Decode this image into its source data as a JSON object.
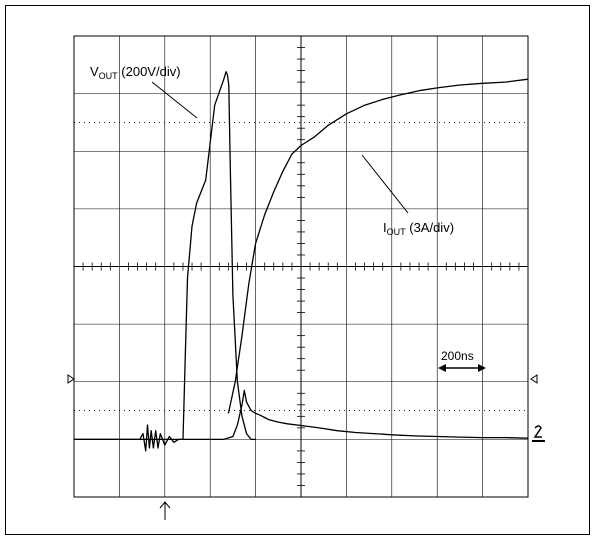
{
  "chart_data": {
    "type": "line",
    "title": "",
    "xlabel": "",
    "ylabel": "",
    "grid": true,
    "divisions": {
      "x": 10,
      "y": 8
    },
    "xlim": [
      0,
      10
    ],
    "ylim": [
      -4,
      4
    ],
    "time_scale": {
      "label": "200ns"
    },
    "series": [
      {
        "name_main": "V",
        "name_sub": "OUT",
        "name_rest": " (200V/div)",
        "color": "#000000",
        "x": [
          0,
          0.5,
          1.0,
          1.3,
          1.45,
          1.52,
          1.58,
          1.62,
          1.66,
          1.7,
          1.75,
          1.8,
          1.85,
          1.9,
          2.0,
          2.1,
          2.2,
          2.3,
          2.4,
          2.45,
          2.5,
          2.6,
          2.7,
          2.9,
          3.1,
          3.3,
          3.35,
          3.38,
          3.41,
          3.44,
          3.5,
          3.6,
          3.7,
          3.8,
          3.9,
          4.0
        ],
        "y": [
          -3.0,
          -3.0,
          -3.0,
          -3.0,
          -3.0,
          -2.9,
          -3.2,
          -2.75,
          -3.15,
          -2.85,
          -3.15,
          -2.85,
          -3.15,
          -2.9,
          -3.1,
          -2.95,
          -3.05,
          -3.0,
          -3.0,
          -1.6,
          -0.2,
          0.7,
          1.1,
          1.5,
          2.8,
          3.25,
          3.38,
          3.32,
          3.15,
          1.8,
          -0.5,
          -2.0,
          -2.6,
          -2.9,
          -3.0,
          -3.0
        ]
      },
      {
        "name_main": "I",
        "name_sub": "OUT",
        "name_rest": " (3A/div)",
        "color": "#000000",
        "x": [
          0,
          1.0,
          2.0,
          2.4,
          2.5,
          3.0,
          3.3,
          3.5,
          3.6,
          3.7,
          3.75,
          3.8,
          3.9,
          4.0,
          4.1,
          4.2,
          4.3,
          4.5,
          4.7,
          5.0,
          5.4,
          5.8,
          6.2,
          6.6,
          7.0,
          7.5,
          8.0,
          8.5,
          9.0,
          9.5,
          10.0
        ],
        "y": [
          -3.0,
          -3.0,
          -3.0,
          -3.0,
          -3.0,
          -3.0,
          -3.0,
          -2.95,
          -2.75,
          -2.4,
          -2.15,
          -2.35,
          -2.5,
          -2.55,
          -2.58,
          -2.62,
          -2.66,
          -2.7,
          -2.73,
          -2.76,
          -2.8,
          -2.85,
          -2.88,
          -2.9,
          -2.92,
          -2.94,
          -2.95,
          -2.96,
          -2.97,
          -2.97,
          -2.98
        ]
      },
      {
        "name": "",
        "color": "#000000",
        "x": [
          3.4,
          3.55,
          3.7,
          3.85,
          4.0,
          4.2,
          4.4,
          4.6,
          4.8,
          5.0,
          5.3,
          5.6,
          6.0,
          6.4,
          6.8,
          7.2,
          7.6,
          8.0,
          8.5,
          9.0,
          9.5,
          10.0
        ],
        "y": [
          -2.55,
          -2.0,
          -1.2,
          -0.3,
          0.4,
          0.9,
          1.3,
          1.65,
          1.95,
          2.1,
          2.25,
          2.45,
          2.65,
          2.8,
          2.9,
          2.98,
          3.05,
          3.1,
          3.15,
          3.18,
          3.2,
          3.25
        ]
      }
    ]
  }
}
